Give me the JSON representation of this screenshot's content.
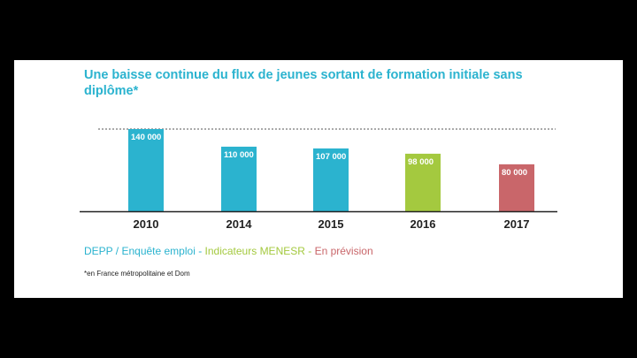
{
  "chart_data": {
    "type": "bar",
    "title": "Une baisse continue du flux de jeunes sortant de formation initiale sans diplôme*",
    "categories": [
      "2010",
      "2014",
      "2015",
      "2016",
      "2017"
    ],
    "values": [
      140000,
      110000,
      107000,
      98000,
      80000
    ],
    "value_labels": [
      "140 000",
      "110 000",
      "107 000",
      "98 000",
      "80 000"
    ],
    "bar_colors": [
      "#2bb3cf",
      "#2bb3cf",
      "#2bb3cf",
      "#a4c93f",
      "#c9666a"
    ],
    "ylim": [
      0,
      140000
    ],
    "reference_line": 140000,
    "grid": false,
    "xlabel": "",
    "ylabel": ""
  },
  "legend": {
    "items": [
      {
        "label": "DEPP / Enquête emploi",
        "color": "#2bb3cf"
      },
      {
        "label": " - ",
        "color": "#2bb3cf"
      },
      {
        "label": "Indicateurs MENESR",
        "color": "#a4c93f"
      },
      {
        "label": " - ",
        "color": "#a4c93f"
      },
      {
        "label": "En prévision",
        "color": "#c9666a"
      }
    ]
  },
  "footnote": "*en France métropolitaine et Dom"
}
